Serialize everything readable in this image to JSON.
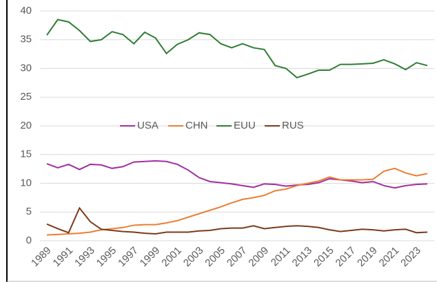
{
  "chart_data": {
    "type": "line",
    "x": [
      1989,
      1990,
      1991,
      1992,
      1993,
      1994,
      1995,
      1996,
      1997,
      1998,
      1999,
      2000,
      2001,
      2002,
      2003,
      2004,
      2005,
      2006,
      2007,
      2008,
      2009,
      2010,
      2011,
      2012,
      2013,
      2014,
      2015,
      2016,
      2017,
      2018,
      2019,
      2020,
      2021,
      2022,
      2023,
      2024
    ],
    "xlim": [
      1989,
      2024
    ],
    "xticks": [
      1989,
      1991,
      1993,
      1995,
      1997,
      1999,
      2001,
      2003,
      2005,
      2007,
      2009,
      2011,
      2013,
      2015,
      2017,
      2019,
      2021,
      2023
    ],
    "ylim": [
      0,
      40
    ],
    "yticks": [
      0,
      5,
      10,
      15,
      20,
      25,
      30,
      35,
      40
    ],
    "grid": true,
    "legend": "center",
    "series": [
      {
        "name": "USA",
        "color": "#a02ea0",
        "values": [
          13.4,
          12.7,
          13.3,
          12.4,
          13.3,
          13.2,
          12.6,
          12.9,
          13.7,
          13.8,
          13.9,
          13.8,
          13.3,
          12.3,
          11.0,
          10.3,
          10.1,
          9.9,
          9.6,
          9.3,
          9.9,
          9.8,
          9.5,
          9.7,
          9.8,
          10.1,
          10.8,
          10.6,
          10.4,
          10.1,
          10.3,
          9.6,
          9.2,
          9.6,
          9.8,
          9.9
        ]
      },
      {
        "name": "CHN",
        "color": "#ed7d31",
        "values": [
          1.0,
          1.1,
          1.2,
          1.3,
          1.5,
          1.9,
          2.1,
          2.3,
          2.7,
          2.8,
          2.8,
          3.1,
          3.5,
          4.1,
          4.7,
          5.3,
          5.9,
          6.6,
          7.2,
          7.5,
          7.9,
          8.7,
          9.0,
          9.6,
          10.0,
          10.4,
          11.1,
          10.6,
          10.6,
          10.6,
          10.7,
          12.1,
          12.6,
          11.8,
          11.3,
          11.7
        ]
      },
      {
        "name": "EUU",
        "color": "#2e7d32",
        "values": [
          35.8,
          38.5,
          38.1,
          36.6,
          34.7,
          35.0,
          36.4,
          35.9,
          34.3,
          36.3,
          35.3,
          32.6,
          34.2,
          35.0,
          36.2,
          35.9,
          34.3,
          33.6,
          34.3,
          33.6,
          33.3,
          30.5,
          30.0,
          28.4,
          29.0,
          29.7,
          29.7,
          30.7,
          30.7,
          30.8,
          30.9,
          31.5,
          30.8,
          29.8,
          31.0,
          30.5
        ]
      },
      {
        "name": "RUS",
        "color": "#7b3a1a",
        "values": [
          2.9,
          2.1,
          1.4,
          5.7,
          3.3,
          2.0,
          1.8,
          1.6,
          1.5,
          1.3,
          1.2,
          1.5,
          1.5,
          1.5,
          1.7,
          1.8,
          2.1,
          2.2,
          2.2,
          2.6,
          2.1,
          2.3,
          2.5,
          2.6,
          2.5,
          2.3,
          1.9,
          1.6,
          1.8,
          2.0,
          1.9,
          1.7,
          1.9,
          2.0,
          1.4,
          1.5
        ]
      }
    ]
  }
}
